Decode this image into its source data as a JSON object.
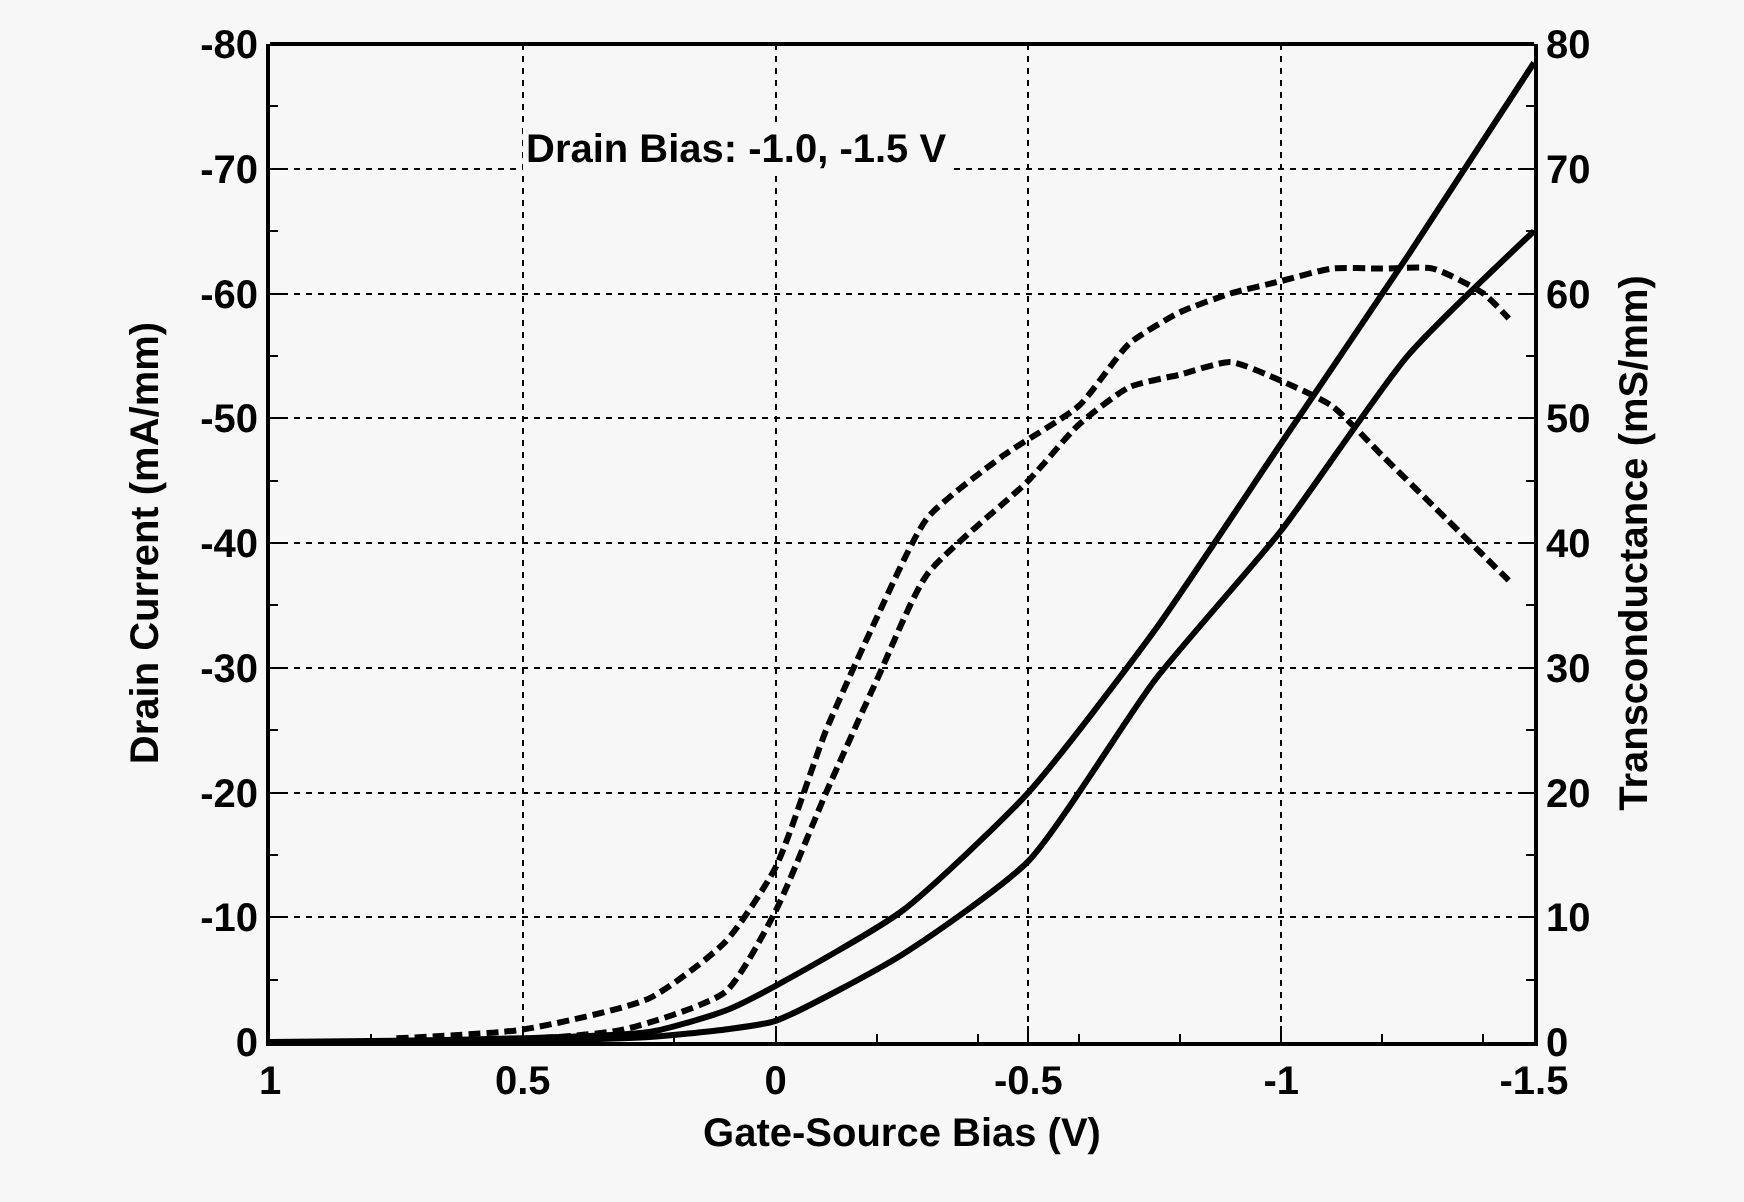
{
  "chart_data": {
    "type": "line",
    "xlabel": "Gate-Source Bias (V)",
    "ylabel": "Drain Current (mA/mm)",
    "y2label": "Transconductance (mS/mm)",
    "annotations": [
      "Drain Bias: -1.0, -1.5 V"
    ],
    "xlim": [
      1,
      -1.5
    ],
    "xticks": [
      1,
      0.5,
      0,
      -0.5,
      -1,
      -1.5
    ],
    "ylim": [
      0,
      -80
    ],
    "yticks": [
      0,
      -10,
      -20,
      -30,
      -40,
      -50,
      -60,
      -70,
      -80
    ],
    "y2lim": [
      0,
      80
    ],
    "y2ticks": [
      0,
      10,
      20,
      30,
      40,
      50,
      60,
      70,
      80
    ],
    "grid": true,
    "marker": "none",
    "series": [
      {
        "color": "#000000",
        "line_style": "solid",
        "x": [
          1,
          0.75,
          0.5,
          0.25,
          0.1,
          0,
          -0.25,
          -0.5,
          -0.75,
          -1,
          -1.25,
          -1.5
        ],
        "values": [
          0,
          -0.1,
          -0.3,
          -0.8,
          -2.5,
          -4.5,
          -10.5,
          -20,
          -33,
          -48,
          -63,
          -78.5
        ]
      },
      {
        "color": "#000000",
        "line_style": "solid",
        "x": [
          1,
          0.75,
          0.5,
          0.25,
          0.1,
          0,
          -0.25,
          -0.5,
          -0.75,
          -1,
          -1.25,
          -1.5
        ],
        "values": [
          0,
          0,
          -0.1,
          -0.4,
          -1,
          -1.7,
          -7,
          -14.5,
          -29,
          -41,
          -55,
          -65
        ]
      },
      {
        "color": "#000000",
        "line_style": "dashed",
        "axis": "y2",
        "x": [
          0.75,
          0.5,
          0.25,
          0.1,
          0,
          -0.1,
          -0.2,
          -0.3,
          -0.45,
          -0.6,
          -0.7,
          -0.8,
          -0.9,
          -1,
          -1.1,
          -1.2,
          -1.3,
          -1.4,
          -1.45
        ],
        "values": [
          0.3,
          1,
          3.5,
          8,
          14,
          25,
          34,
          42,
          47,
          51,
          56,
          58.5,
          60,
          61,
          62,
          62,
          62,
          60,
          58
        ]
      },
      {
        "color": "#000000",
        "line_style": "dashed",
        "axis": "y2",
        "x": [
          0.5,
          0.3,
          0.1,
          0,
          -0.1,
          -0.2,
          -0.3,
          -0.5,
          -0.6,
          -0.7,
          -0.8,
          -0.9,
          -1,
          -1.1,
          -1.2,
          -1.3,
          -1.4,
          -1.45
        ],
        "values": [
          0.2,
          1,
          4,
          10.5,
          20,
          29,
          37.5,
          45,
          49.5,
          52.5,
          53.5,
          54.5,
          53,
          51,
          47,
          43,
          39,
          37
        ]
      }
    ]
  }
}
